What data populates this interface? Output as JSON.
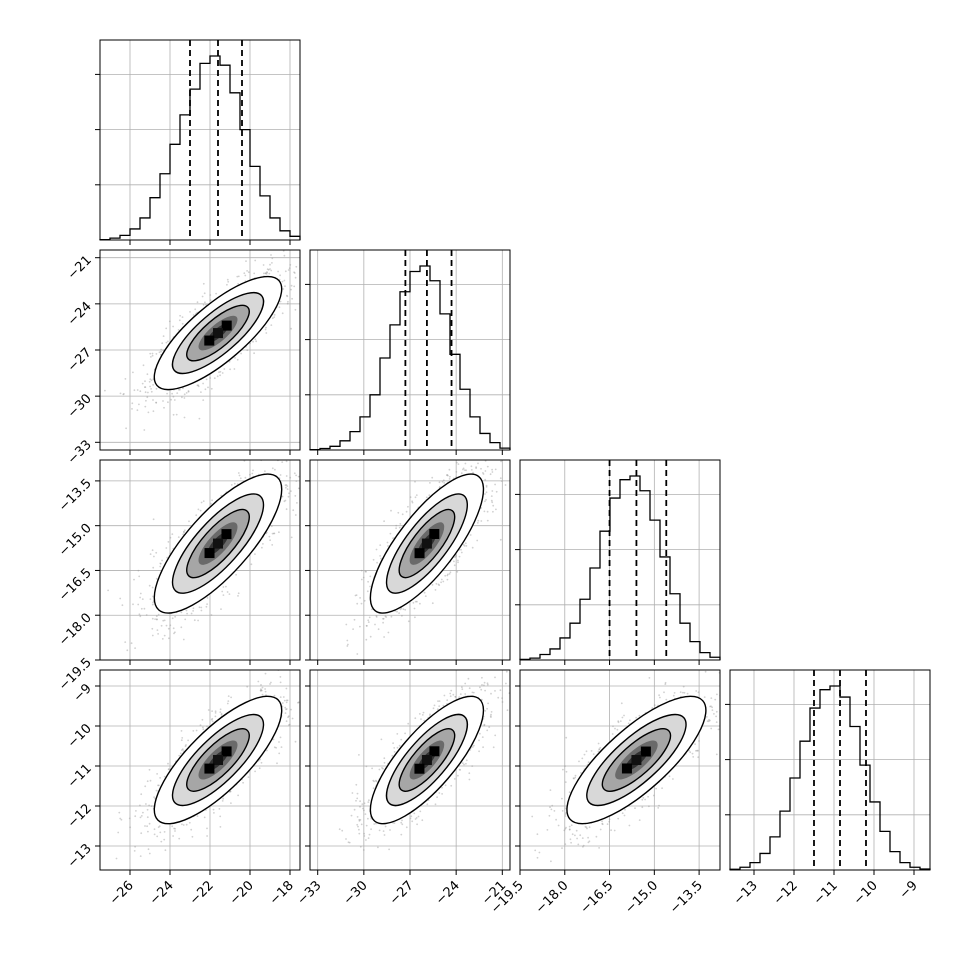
{
  "chart_data": {
    "type": "corner",
    "parameters": [
      {
        "range": [
          -27.5,
          -17.5
        ],
        "ticks": [
          -26,
          -24,
          -22,
          -20,
          -18
        ],
        "tick_labels": [
          "−26",
          "−24",
          "−22",
          "−20",
          "−18"
        ],
        "quantiles": [
          -23.0,
          -21.6,
          -20.4
        ],
        "hist": [
          0.002,
          0.01,
          0.025,
          0.06,
          0.12,
          0.23,
          0.36,
          0.52,
          0.68,
          0.82,
          0.96,
          1.0,
          0.95,
          0.8,
          0.6,
          0.4,
          0.24,
          0.12,
          0.05,
          0.02
        ]
      },
      {
        "range": [
          -33.5,
          -20.5
        ],
        "ticks": [
          -33,
          -30,
          -27,
          -24,
          -21
        ],
        "tick_labels": [
          "−33",
          "−30",
          "−27",
          "−24",
          "−21"
        ],
        "quantiles": [
          -27.3,
          -25.9,
          -24.3
        ],
        "hist": [
          0.002,
          0.008,
          0.02,
          0.05,
          0.1,
          0.18,
          0.3,
          0.5,
          0.68,
          0.86,
          0.97,
          1.0,
          0.92,
          0.74,
          0.52,
          0.33,
          0.18,
          0.09,
          0.04,
          0.01
        ]
      },
      {
        "range": [
          -19.5,
          -12.8
        ],
        "ticks": [
          -19.5,
          -18.0,
          -16.5,
          -15.0,
          -13.5
        ],
        "tick_labels": [
          "−19.5",
          "−18.0",
          "−16.5",
          "−15.0",
          "−13.5"
        ],
        "quantiles": [
          -16.5,
          -15.6,
          -14.6
        ],
        "hist": [
          0.003,
          0.01,
          0.03,
          0.06,
          0.12,
          0.2,
          0.33,
          0.5,
          0.7,
          0.88,
          0.98,
          1.0,
          0.92,
          0.76,
          0.56,
          0.36,
          0.2,
          0.1,
          0.04,
          0.015
        ]
      },
      {
        "range": [
          -13.6,
          -8.6
        ],
        "ticks": [
          -13,
          -12,
          -11,
          -10,
          -9
        ],
        "tick_labels": [
          "−13",
          "−12",
          "−11",
          "−10",
          "−9"
        ],
        "quantiles": [
          -11.5,
          -10.85,
          -10.2
        ],
        "hist": [
          0.004,
          0.015,
          0.04,
          0.09,
          0.18,
          0.32,
          0.5,
          0.7,
          0.88,
          0.98,
          1.0,
          0.94,
          0.78,
          0.57,
          0.37,
          0.21,
          0.1,
          0.04,
          0.015,
          0.005
        ]
      }
    ],
    "correlation": 0.78,
    "colors": {
      "contour": "#000000",
      "points": "#9a9a9a",
      "grid": "#b0b0b0"
    }
  }
}
